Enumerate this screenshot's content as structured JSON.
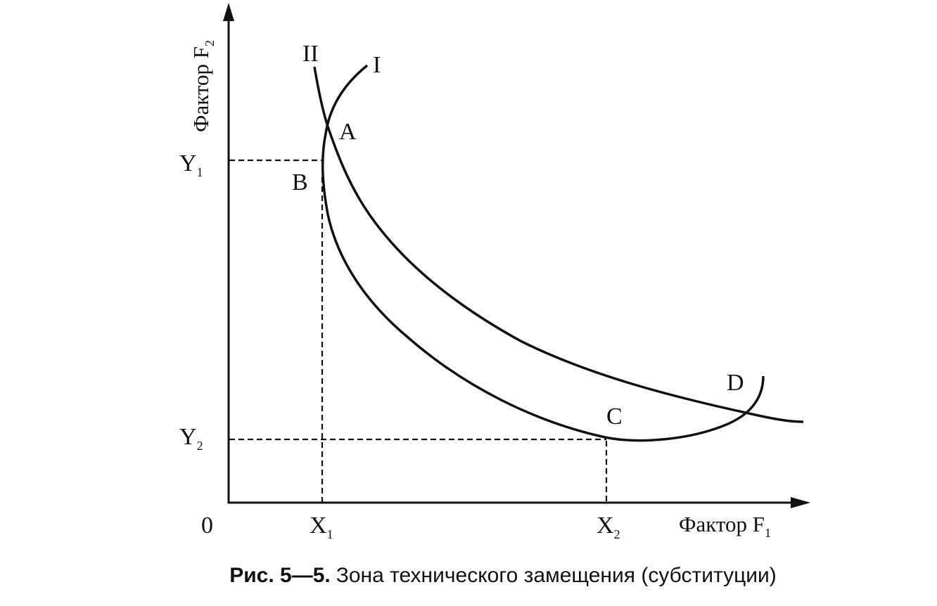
{
  "figure": {
    "curve_labels": {
      "II": "II",
      "I": "I"
    },
    "points": {
      "A": "A",
      "B": "B",
      "C": "C",
      "D": "D"
    },
    "y_marks": [
      {
        "main": "Y",
        "sub": "1"
      },
      {
        "main": "Y",
        "sub": "2"
      }
    ],
    "x_marks": [
      {
        "main": "X",
        "sub": "1"
      },
      {
        "main": "X",
        "sub": "2"
      }
    ],
    "origin": "0",
    "x_axis_label": {
      "main": "Фактор F",
      "sub": "1"
    },
    "y_axis_label": {
      "main": "Фактор F",
      "sub": "2"
    },
    "caption": {
      "number": "Рис. 5—5.",
      "text": "Зона технического замещения (субституции)"
    }
  }
}
